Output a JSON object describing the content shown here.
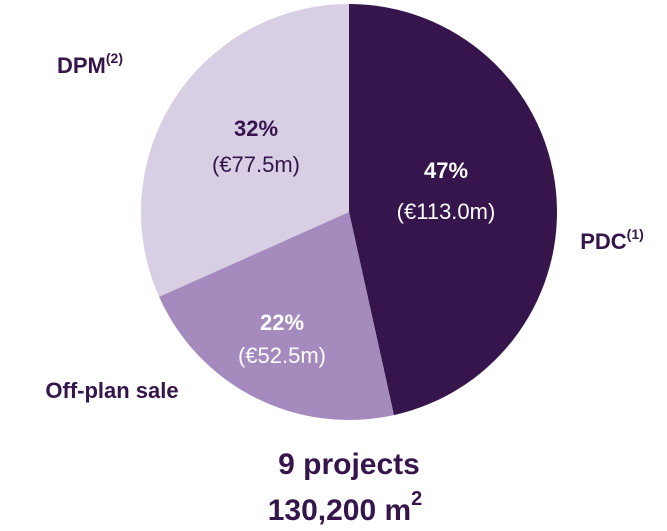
{
  "chart_data": {
    "type": "pie",
    "categories": [
      "PDC",
      "Off-plan sale",
      "DPM"
    ],
    "category_notes": [
      "(1)",
      null,
      "(2)"
    ],
    "values": [
      47,
      22,
      32
    ],
    "value_labels": [
      "47%",
      "22%",
      "32%"
    ],
    "amount_labels": [
      "(€113.0m)",
      "(€52.5m)",
      "(€77.5m)"
    ],
    "colors": [
      "#35154b",
      "#a58abe",
      "#d8cfe4"
    ],
    "label_colors": [
      "#ffffff",
      "#ffffff",
      "#35154b"
    ],
    "annotation": {
      "line1": "9 projects",
      "line2": "130,200 m",
      "line2_sup": "2"
    }
  }
}
